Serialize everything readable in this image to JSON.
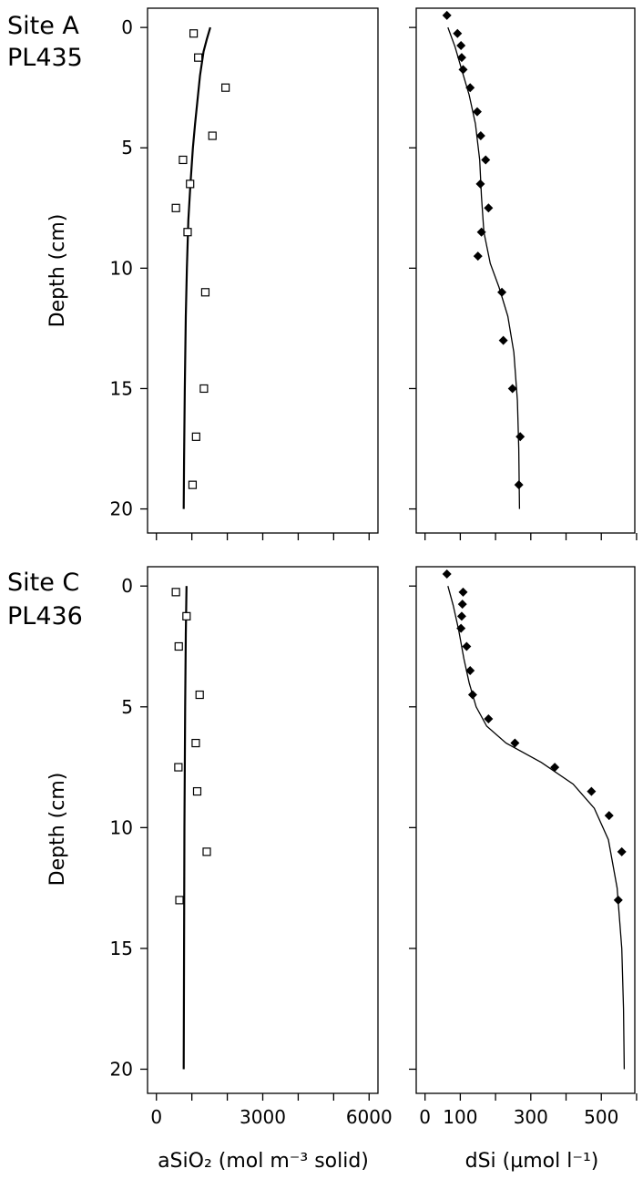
{
  "chart_data": [
    {
      "type": "scatter",
      "site_line1": "Site A",
      "site_line2": "PL435",
      "ylabel": "Depth (cm)",
      "ylim": [
        -0.8,
        21
      ],
      "y_inverted": true,
      "yticks": [
        0,
        5,
        10,
        15,
        20
      ],
      "panels": [
        {
          "id": "asio2",
          "xlim": [
            -250,
            6250
          ],
          "xticks": [
            0,
            1000,
            2000,
            3000,
            4000,
            5000,
            6000
          ],
          "points": [
            {
              "x": 1050,
              "y": 0.25
            },
            {
              "x": 1180,
              "y": 1.25
            },
            {
              "x": 1950,
              "y": 2.5
            },
            {
              "x": 1580,
              "y": 4.5
            },
            {
              "x": 750,
              "y": 5.5
            },
            {
              "x": 950,
              "y": 6.5
            },
            {
              "x": 550,
              "y": 7.5
            },
            {
              "x": 880,
              "y": 8.5
            },
            {
              "x": 1380,
              "y": 11
            },
            {
              "x": 1340,
              "y": 15
            },
            {
              "x": 1120,
              "y": 17
            },
            {
              "x": 1020,
              "y": 19
            }
          ],
          "curve": [
            {
              "x": 1520,
              "y": 0
            },
            {
              "x": 1420,
              "y": 0.5
            },
            {
              "x": 1330,
              "y": 1
            },
            {
              "x": 1230,
              "y": 2
            },
            {
              "x": 1160,
              "y": 3
            },
            {
              "x": 1090,
              "y": 4
            },
            {
              "x": 1030,
              "y": 5
            },
            {
              "x": 960,
              "y": 6.5
            },
            {
              "x": 900,
              "y": 8
            },
            {
              "x": 860,
              "y": 10
            },
            {
              "x": 830,
              "y": 12
            },
            {
              "x": 800,
              "y": 15
            },
            {
              "x": 780,
              "y": 18
            },
            {
              "x": 770,
              "y": 20
            }
          ]
        },
        {
          "id": "dsi",
          "xlim": [
            -25,
            595
          ],
          "xticks": [
            0,
            100,
            200,
            300,
            400,
            500,
            600
          ],
          "points": [
            {
              "x": 62,
              "y": -0.5
            },
            {
              "x": 92,
              "y": 0.25
            },
            {
              "x": 102,
              "y": 0.75
            },
            {
              "x": 104,
              "y": 1.25
            },
            {
              "x": 108,
              "y": 1.75
            },
            {
              "x": 128,
              "y": 2.5
            },
            {
              "x": 148,
              "y": 3.5
            },
            {
              "x": 158,
              "y": 4.5
            },
            {
              "x": 172,
              "y": 5.5
            },
            {
              "x": 157,
              "y": 6.5
            },
            {
              "x": 180,
              "y": 7.5
            },
            {
              "x": 160,
              "y": 8.5
            },
            {
              "x": 150,
              "y": 9.5
            },
            {
              "x": 218,
              "y": 11
            },
            {
              "x": 222,
              "y": 13
            },
            {
              "x": 248,
              "y": 15
            },
            {
              "x": 270,
              "y": 17
            },
            {
              "x": 266,
              "y": 19
            }
          ],
          "curve": [
            {
              "x": 65,
              "y": 0
            },
            {
              "x": 85,
              "y": 0.8
            },
            {
              "x": 105,
              "y": 1.8
            },
            {
              "x": 125,
              "y": 2.8
            },
            {
              "x": 143,
              "y": 4
            },
            {
              "x": 155,
              "y": 5.5
            },
            {
              "x": 160,
              "y": 7
            },
            {
              "x": 167,
              "y": 8.5
            },
            {
              "x": 185,
              "y": 9.8
            },
            {
              "x": 210,
              "y": 10.8
            },
            {
              "x": 235,
              "y": 12
            },
            {
              "x": 252,
              "y": 13.5
            },
            {
              "x": 262,
              "y": 15.5
            },
            {
              "x": 266,
              "y": 17.5
            },
            {
              "x": 268,
              "y": 20
            }
          ]
        }
      ]
    },
    {
      "type": "scatter",
      "site_line1": "Site C",
      "site_line2": "PL436",
      "ylabel": "Depth (cm)",
      "ylim": [
        -0.8,
        21
      ],
      "y_inverted": true,
      "yticks": [
        0,
        5,
        10,
        15,
        20
      ],
      "xlabel_left": "aSiO₂ (mol m⁻³ solid)",
      "xlabel_right": "dSi (µmol l⁻¹)",
      "xtick_labels_left": [
        "0",
        "3000",
        "6000"
      ],
      "xtick_labels_right": [
        "0",
        "100",
        "300",
        "500"
      ],
      "panels": [
        {
          "id": "asio2",
          "xlim": [
            -250,
            6250
          ],
          "xticks": [
            0,
            1000,
            2000,
            3000,
            4000,
            5000,
            6000
          ],
          "xtick_label_values": [
            0,
            3000,
            6000
          ],
          "points": [
            {
              "x": 550,
              "y": 0.25
            },
            {
              "x": 850,
              "y": 1.25
            },
            {
              "x": 630,
              "y": 2.5
            },
            {
              "x": 1220,
              "y": 4.5
            },
            {
              "x": 1110,
              "y": 6.5
            },
            {
              "x": 620,
              "y": 7.5
            },
            {
              "x": 1150,
              "y": 8.5
            },
            {
              "x": 1420,
              "y": 11
            },
            {
              "x": 650,
              "y": 13
            }
          ],
          "curve": [
            {
              "x": 850,
              "y": 0
            },
            {
              "x": 830,
              "y": 2
            },
            {
              "x": 810,
              "y": 5
            },
            {
              "x": 790,
              "y": 10
            },
            {
              "x": 780,
              "y": 15
            },
            {
              "x": 770,
              "y": 20
            }
          ]
        },
        {
          "id": "dsi",
          "xlim": [
            -25,
            595
          ],
          "xticks": [
            0,
            100,
            200,
            300,
            400,
            500,
            600
          ],
          "xtick_label_values": [
            0,
            100,
            300,
            500
          ],
          "points": [
            {
              "x": 62,
              "y": -0.5
            },
            {
              "x": 108,
              "y": 0.25
            },
            {
              "x": 106,
              "y": 0.75
            },
            {
              "x": 104,
              "y": 1.25
            },
            {
              "x": 102,
              "y": 1.75
            },
            {
              "x": 118,
              "y": 2.5
            },
            {
              "x": 128,
              "y": 3.5
            },
            {
              "x": 135,
              "y": 4.5
            },
            {
              "x": 180,
              "y": 5.5
            },
            {
              "x": 255,
              "y": 6.5
            },
            {
              "x": 368,
              "y": 7.5
            },
            {
              "x": 472,
              "y": 8.5
            },
            {
              "x": 522,
              "y": 9.5
            },
            {
              "x": 558,
              "y": 11
            },
            {
              "x": 548,
              "y": 13
            }
          ],
          "curve": [
            {
              "x": 65,
              "y": 0
            },
            {
              "x": 80,
              "y": 0.8
            },
            {
              "x": 95,
              "y": 1.8
            },
            {
              "x": 110,
              "y": 3
            },
            {
              "x": 125,
              "y": 4
            },
            {
              "x": 145,
              "y": 5
            },
            {
              "x": 175,
              "y": 5.8
            },
            {
              "x": 230,
              "y": 6.5
            },
            {
              "x": 330,
              "y": 7.3
            },
            {
              "x": 420,
              "y": 8.2
            },
            {
              "x": 480,
              "y": 9.2
            },
            {
              "x": 520,
              "y": 10.5
            },
            {
              "x": 545,
              "y": 12.5
            },
            {
              "x": 558,
              "y": 15
            },
            {
              "x": 563,
              "y": 17.5
            },
            {
              "x": 565,
              "y": 20
            }
          ]
        }
      ]
    }
  ]
}
